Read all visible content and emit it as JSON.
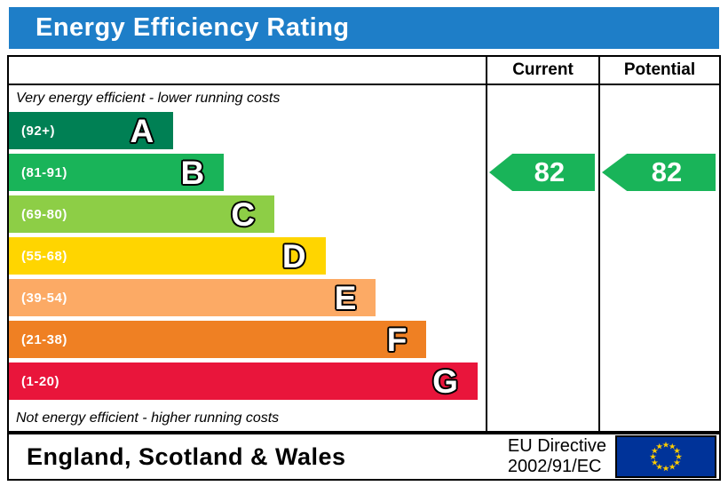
{
  "title": "Energy Efficiency Rating",
  "colors": {
    "title_bar": "#1e7ec8",
    "border": "#000000"
  },
  "table": {
    "columns": {
      "current": "Current",
      "potential": "Potential"
    },
    "top_note": "Very energy efficient - lower running costs",
    "bottom_note": "Not energy efficient - higher running costs"
  },
  "footer": {
    "region": "England, Scotland & Wales",
    "directive": {
      "line1": "EU Directive",
      "line2": "2002/91/EC"
    },
    "eu_flag": {
      "background": "#003399",
      "stars": "#ffcc00"
    }
  },
  "chart_data": {
    "type": "bar",
    "orientation": "horizontal",
    "title": "Energy Efficiency Rating",
    "categories": [
      "A",
      "B",
      "C",
      "D",
      "E",
      "F",
      "G"
    ],
    "bands": [
      {
        "letter": "A",
        "range": "(92+)",
        "score_min": 92,
        "score_max": 100,
        "color": "#008054",
        "width_pct": 34.5
      },
      {
        "letter": "B",
        "range": "(81-91)",
        "score_min": 81,
        "score_max": 91,
        "color": "#19b459",
        "width_pct": 45.1
      },
      {
        "letter": "C",
        "range": "(69-80)",
        "score_min": 69,
        "score_max": 80,
        "color": "#8dce46",
        "width_pct": 55.7
      },
      {
        "letter": "D",
        "range": "(55-68)",
        "score_min": 55,
        "score_max": 68,
        "color": "#ffd500",
        "width_pct": 66.4
      },
      {
        "letter": "E",
        "range": "(39-54)",
        "score_min": 39,
        "score_max": 54,
        "color": "#fcaa65",
        "width_pct": 77.0
      },
      {
        "letter": "F",
        "range": "(21-38)",
        "score_min": 21,
        "score_max": 38,
        "color": "#ef8023",
        "width_pct": 87.6
      },
      {
        "letter": "G",
        "range": "(1-20)",
        "score_min": 1,
        "score_max": 20,
        "color": "#e9153b",
        "width_pct": 98.3
      }
    ],
    "current": {
      "value": 82,
      "band": "B",
      "color": "#19b459"
    },
    "potential": {
      "value": 82,
      "band": "B",
      "color": "#19b459"
    }
  }
}
